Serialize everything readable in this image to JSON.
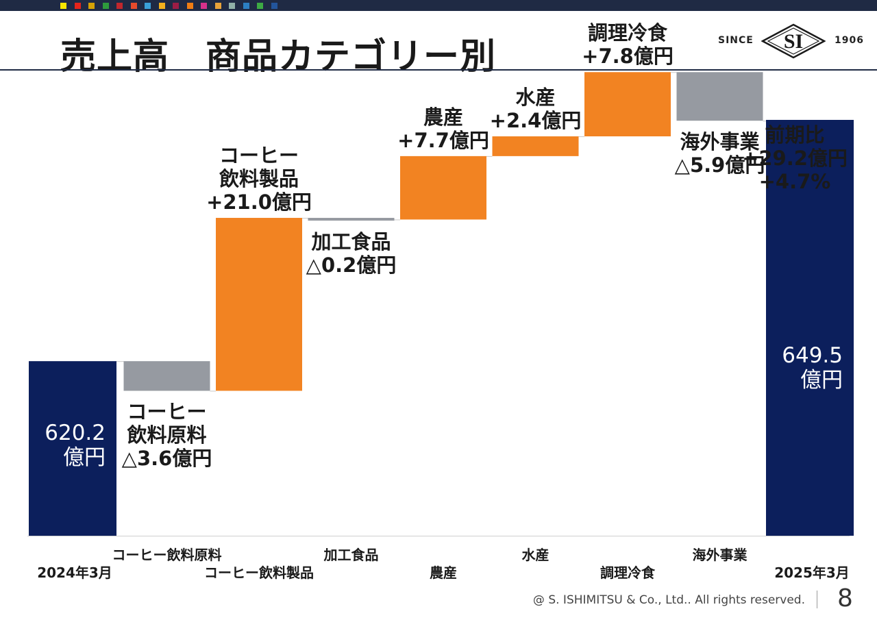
{
  "header": {
    "title": "売上高　商品カテゴリー別",
    "logo": {
      "since": "SINCE",
      "mark": "SI",
      "year": "1906"
    },
    "color_strip": [
      "#f6e600",
      "#e5241b",
      "#d4a106",
      "#2e9a3c",
      "#c0272d",
      "#e54b2c",
      "#3aa0d8",
      "#f2b01e",
      "#9b1d45",
      "#ef7d14",
      "#d7318b",
      "#e8a33a",
      "#8fb0a8",
      "#2c7fc2",
      "#3daa44",
      "#23559c",
      "#1f2a44"
    ]
  },
  "chart_data": {
    "type": "waterfall",
    "unit": "億円",
    "colors": {
      "total": "#0c1f5c",
      "increase": "#f28322",
      "decrease": "#969aa1"
    },
    "steps": [
      {
        "category": "2024年3月",
        "kind": "total",
        "value": 620.2
      },
      {
        "category": "コーヒー飲料原料",
        "kind": "decrease",
        "value": -3.6
      },
      {
        "category": "コーヒー飲料製品",
        "kind": "increase",
        "value": 21.0
      },
      {
        "category": "加工食品",
        "kind": "decrease",
        "value": -0.2
      },
      {
        "category": "農産",
        "kind": "increase",
        "value": 7.7
      },
      {
        "category": "水産",
        "kind": "increase",
        "value": 2.4
      },
      {
        "category": "調理冷食",
        "kind": "increase",
        "value": 7.8
      },
      {
        "category": "海外事業",
        "kind": "decrease",
        "value": -5.9
      },
      {
        "category": "2025年3月",
        "kind": "total",
        "value": 649.5
      }
    ],
    "data_labels": [
      [
        "620.2",
        "億円"
      ],
      [
        "コーヒー",
        "飲料原料",
        "△3.6億円"
      ],
      [
        "コーヒー",
        "飲料製品",
        "+21.0億円"
      ],
      [
        "加工食品",
        "△0.2億円"
      ],
      [
        "農産",
        "+7.7億円"
      ],
      [
        "水産",
        "+2.4億円"
      ],
      [
        "調理冷食",
        "+7.8億円"
      ],
      [
        "海外事業",
        "△5.9億円"
      ],
      [
        "649.5",
        "億円"
      ]
    ],
    "annotation": [
      "前期比",
      "+29.2億円",
      "+4.7%"
    ],
    "grid": false,
    "legend": "none"
  },
  "footer": {
    "copyright": "@ S. ISHIMITSU & Co., Ltd.. All rights reserved.",
    "page": "8"
  }
}
